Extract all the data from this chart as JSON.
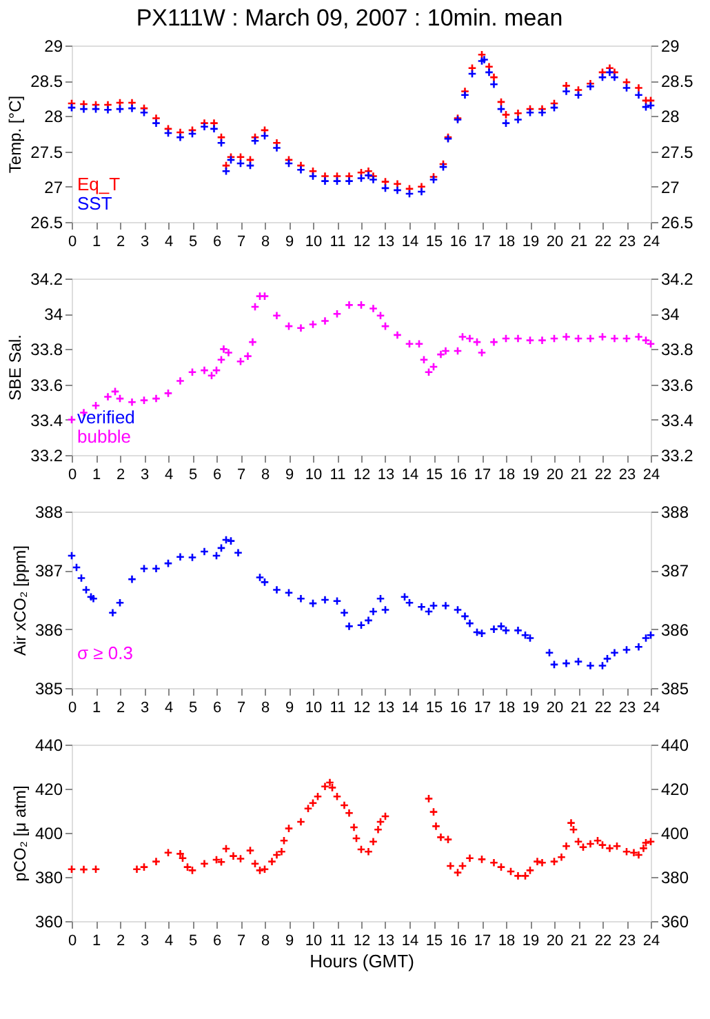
{
  "chart_data": [
    {
      "type": "scatter",
      "title": "PX111W : March 09, 2007 : 10min. mean",
      "ylabel": "Temp. [°C]",
      "marker": "cross",
      "grid": false,
      "legend": "bottom left",
      "xlim": [
        0,
        24
      ],
      "xticks": [
        0,
        1,
        2,
        3,
        4,
        5,
        6,
        7,
        8,
        9,
        10,
        11,
        12,
        13,
        14,
        15,
        16,
        17,
        18,
        19,
        20,
        21,
        22,
        23,
        24
      ],
      "ylim": [
        26.5,
        29
      ],
      "yticks": [
        26.5,
        27,
        27.5,
        28,
        28.5,
        29
      ],
      "y2lim": [
        26.5,
        29
      ],
      "y2ticks": [
        26.5,
        27,
        27.5,
        28,
        28.5,
        29
      ],
      "series": [
        {
          "name": "Eq_T",
          "color": "#ff0000",
          "x": [
            0,
            0.5,
            1,
            1.5,
            2,
            2.5,
            3,
            3.5,
            4,
            4.5,
            5,
            5.5,
            5.9,
            6.2,
            6.4,
            6.6,
            7,
            7.4,
            7.6,
            8,
            8.5,
            9,
            9.5,
            10,
            10.5,
            11,
            11.5,
            12,
            12.3,
            12.5,
            13,
            13.5,
            14,
            14.5,
            15,
            15.4,
            15.6,
            16,
            16.3,
            16.6,
            17,
            17.3,
            17.5,
            17.8,
            18,
            18.5,
            19,
            19.5,
            20,
            20.5,
            21,
            21.5,
            22,
            22.3,
            22.5,
            23,
            23.5,
            23.8,
            24
          ],
          "values": [
            28.18,
            28.17,
            28.16,
            28.16,
            28.19,
            28.19,
            28.11,
            27.97,
            27.82,
            27.77,
            27.8,
            27.9,
            27.9,
            27.7,
            27.3,
            27.42,
            27.42,
            27.38,
            27.7,
            27.8,
            27.62,
            27.38,
            27.3,
            27.22,
            27.15,
            27.15,
            27.15,
            27.2,
            27.22,
            27.15,
            27.07,
            27.04,
            26.97,
            27.0,
            27.14,
            27.32,
            27.7,
            27.97,
            28.35,
            28.68,
            28.87,
            28.7,
            28.55,
            28.2,
            28.02,
            28.04,
            28.1,
            28.1,
            28.18,
            28.43,
            28.37,
            28.46,
            28.62,
            28.68,
            28.62,
            28.48,
            28.4,
            28.22,
            28.22
          ]
        },
        {
          "name": "SST",
          "color": "#0000ff",
          "x": [
            0,
            0.5,
            1,
            1.5,
            2,
            2.5,
            3,
            3.5,
            4,
            4.5,
            5,
            5.5,
            5.9,
            6.2,
            6.4,
            6.6,
            7,
            7.4,
            7.6,
            8,
            8.5,
            9,
            9.5,
            10,
            10.5,
            11,
            11.5,
            12,
            12.3,
            12.5,
            13,
            13.5,
            14,
            14.5,
            15,
            15.4,
            15.6,
            16,
            16.3,
            16.6,
            17,
            17.1,
            17.3,
            17.5,
            17.8,
            18,
            18.5,
            19,
            19.5,
            20,
            20.5,
            21,
            21.5,
            22,
            22.3,
            22.5,
            23,
            23.5,
            23.8,
            24
          ],
          "values": [
            28.12,
            28.1,
            28.1,
            28.09,
            28.1,
            28.11,
            28.05,
            27.9,
            27.76,
            27.7,
            27.75,
            27.85,
            27.82,
            27.62,
            27.22,
            27.38,
            27.33,
            27.3,
            27.65,
            27.72,
            27.55,
            27.33,
            27.24,
            27.15,
            27.08,
            27.08,
            27.08,
            27.12,
            27.16,
            27.1,
            26.98,
            26.95,
            26.9,
            26.93,
            27.1,
            27.28,
            27.68,
            27.95,
            28.3,
            28.6,
            28.78,
            28.8,
            28.62,
            28.45,
            28.1,
            27.9,
            27.95,
            28.05,
            28.05,
            28.12,
            28.35,
            28.3,
            28.42,
            28.55,
            28.62,
            28.55,
            28.4,
            28.3,
            28.13,
            28.15
          ]
        }
      ]
    },
    {
      "type": "scatter",
      "ylabel": "SBE Sal.",
      "marker": "cross",
      "grid": false,
      "legend": "bottom left",
      "xlim": [
        0,
        24
      ],
      "xticks": [
        0,
        1,
        2,
        3,
        4,
        5,
        6,
        7,
        8,
        9,
        10,
        11,
        12,
        13,
        14,
        15,
        16,
        17,
        18,
        19,
        20,
        21,
        22,
        23,
        24
      ],
      "ylim": [
        33.2,
        34.2
      ],
      "yticks": [
        33.2,
        33.4,
        33.6,
        33.8,
        34,
        34.2
      ],
      "y2lim": [
        33.2,
        34.2
      ],
      "y2ticks": [
        33.2,
        33.4,
        33.6,
        33.8,
        34,
        34.2
      ],
      "series": [
        {
          "name": "verified",
          "color": "#0000ff"
        },
        {
          "name": "bubble",
          "color": "#ff00ff",
          "x": [
            0,
            0.5,
            1,
            1.5,
            1.8,
            2,
            2.5,
            3,
            3.5,
            4,
            4.5,
            5,
            5.5,
            5.8,
            6,
            6.2,
            6.3,
            6.5,
            7,
            7.3,
            7.5,
            7.6,
            7.8,
            8,
            8.5,
            9,
            9.5,
            10,
            10.5,
            11,
            11.5,
            12,
            12.5,
            12.8,
            13,
            13.5,
            14,
            14.4,
            14.6,
            14.8,
            15,
            15.3,
            15.5,
            16,
            16.2,
            16.5,
            16.8,
            17,
            17.5,
            18,
            18.5,
            19,
            19.5,
            20,
            20.5,
            21,
            21.5,
            22,
            22.5,
            23,
            23.5,
            23.8,
            24
          ],
          "values": [
            33.4,
            33.44,
            33.48,
            33.53,
            33.56,
            33.52,
            33.5,
            33.51,
            33.52,
            33.55,
            33.62,
            33.67,
            33.68,
            33.65,
            33.68,
            33.74,
            33.8,
            33.78,
            33.73,
            33.76,
            33.84,
            34.04,
            34.1,
            34.1,
            33.99,
            33.93,
            33.92,
            33.94,
            33.96,
            34.0,
            34.05,
            34.05,
            34.03,
            33.99,
            33.93,
            33.88,
            33.83,
            33.83,
            33.74,
            33.67,
            33.7,
            33.77,
            33.79,
            33.79,
            33.87,
            33.86,
            33.84,
            33.78,
            33.84,
            33.86,
            33.86,
            33.85,
            33.85,
            33.86,
            33.87,
            33.86,
            33.86,
            33.87,
            33.86,
            33.86,
            33.87,
            33.85,
            33.83
          ]
        }
      ]
    },
    {
      "type": "scatter",
      "ylabel": "Air xCO₂ [ppm]",
      "marker": "cross",
      "grid": false,
      "annotations": [
        "σ ≥ 0.3"
      ],
      "xlim": [
        0,
        24
      ],
      "xticks": [
        0,
        1,
        2,
        3,
        4,
        5,
        6,
        7,
        8,
        9,
        10,
        11,
        12,
        13,
        14,
        15,
        16,
        17,
        18,
        19,
        20,
        21,
        22,
        23,
        24
      ],
      "ylim": [
        385,
        388
      ],
      "yticks": [
        385,
        386,
        387,
        388
      ],
      "y2lim": [
        385,
        388
      ],
      "y2ticks": [
        385,
        386,
        387,
        388
      ],
      "series": [
        {
          "color": "#0000ff",
          "x": [
            0,
            0.2,
            0.4,
            0.6,
            0.8,
            0.9,
            1.7,
            2,
            2.5,
            3,
            3.5,
            4,
            4.5,
            5,
            5.5,
            6,
            6.2,
            6.4,
            6.6,
            6.9,
            7.8,
            8,
            8.5,
            9,
            9.5,
            10,
            10.5,
            11,
            11.3,
            11.5,
            12,
            12.3,
            12.5,
            12.8,
            13,
            13.8,
            14,
            14.5,
            14.8,
            15,
            15.5,
            16,
            16.3,
            16.5,
            16.8,
            17,
            17.5,
            17.8,
            18,
            18.5,
            18.8,
            19,
            19.8,
            20,
            20.5,
            21,
            21.5,
            22,
            22.2,
            22.5,
            23,
            23.5,
            23.8,
            24
          ],
          "values": [
            387.25,
            387.05,
            386.87,
            386.67,
            386.55,
            386.52,
            386.28,
            386.45,
            386.85,
            387.03,
            387.03,
            387.12,
            387.23,
            387.22,
            387.32,
            387.25,
            387.38,
            387.52,
            387.5,
            387.3,
            386.88,
            386.8,
            386.67,
            386.62,
            386.52,
            386.44,
            386.5,
            386.48,
            386.28,
            386.05,
            386.07,
            386.15,
            386.3,
            386.52,
            386.33,
            386.55,
            386.45,
            386.38,
            386.3,
            386.4,
            386.4,
            386.33,
            386.22,
            386.1,
            385.95,
            385.93,
            386.0,
            386.05,
            385.98,
            385.98,
            385.9,
            385.85,
            385.6,
            385.4,
            385.42,
            385.45,
            385.38,
            385.38,
            385.5,
            385.6,
            385.65,
            385.7,
            385.85,
            385.9
          ]
        }
      ]
    },
    {
      "type": "scatter",
      "ylabel": "pCO₂ [μ atm]",
      "xlabel": "Hours (GMT)",
      "marker": "cross",
      "grid": false,
      "xlim": [
        0,
        24
      ],
      "xticks": [
        0,
        1,
        2,
        3,
        4,
        5,
        6,
        7,
        8,
        9,
        10,
        11,
        12,
        13,
        14,
        15,
        16,
        17,
        18,
        19,
        20,
        21,
        22,
        23,
        24
      ],
      "ylim": [
        360,
        440
      ],
      "yticks": [
        360,
        380,
        400,
        420,
        440
      ],
      "y2lim": [
        360,
        440
      ],
      "y2ticks": [
        360,
        380,
        400,
        420,
        440
      ],
      "series": [
        {
          "color": "#ff0000",
          "x": [
            0,
            0.5,
            1,
            2.7,
            3,
            3.5,
            4,
            4.5,
            4.6,
            4.8,
            5,
            5.5,
            6,
            6.2,
            6.4,
            6.7,
            7,
            7.4,
            7.6,
            7.8,
            8,
            8.3,
            8.5,
            8.7,
            8.8,
            9,
            9.5,
            9.8,
            10,
            10.2,
            10.5,
            10.7,
            10.8,
            11,
            11.3,
            11.5,
            11.7,
            11.8,
            12,
            12.3,
            12.5,
            12.7,
            12.8,
            13,
            14.8,
            15,
            15.1,
            15.3,
            15.6,
            15.7,
            16,
            16.2,
            16.5,
            17,
            17.5,
            17.8,
            18.2,
            18.5,
            18.8,
            19,
            19.3,
            19.5,
            20,
            20.3,
            20.5,
            20.7,
            20.8,
            21,
            21.2,
            21.5,
            21.8,
            22,
            22.3,
            22.6,
            23,
            23.3,
            23.5,
            23.7,
            23.8,
            24
          ],
          "values": [
            383.5,
            383.4,
            383.5,
            383.5,
            384.5,
            387,
            391,
            390.5,
            388.5,
            384.5,
            383,
            386,
            387.8,
            386.8,
            392.8,
            389.5,
            388.3,
            392,
            386,
            383,
            383.5,
            387,
            390,
            391.5,
            396.5,
            402,
            405,
            411,
            413.5,
            416.5,
            421,
            422.8,
            420.5,
            416.5,
            412.5,
            409,
            402.5,
            397.5,
            392.5,
            391.5,
            396,
            401.5,
            405,
            407.5,
            415.5,
            409.5,
            403,
            398,
            397,
            385,
            382,
            385,
            388.5,
            388,
            386.5,
            384.5,
            382.5,
            380.5,
            380.5,
            383,
            387,
            386.5,
            387,
            389,
            394,
            404.5,
            401.5,
            396,
            393.5,
            395,
            396.5,
            394.5,
            393,
            394,
            391.5,
            391,
            390,
            393,
            395.5,
            396
          ]
        }
      ]
    }
  ]
}
